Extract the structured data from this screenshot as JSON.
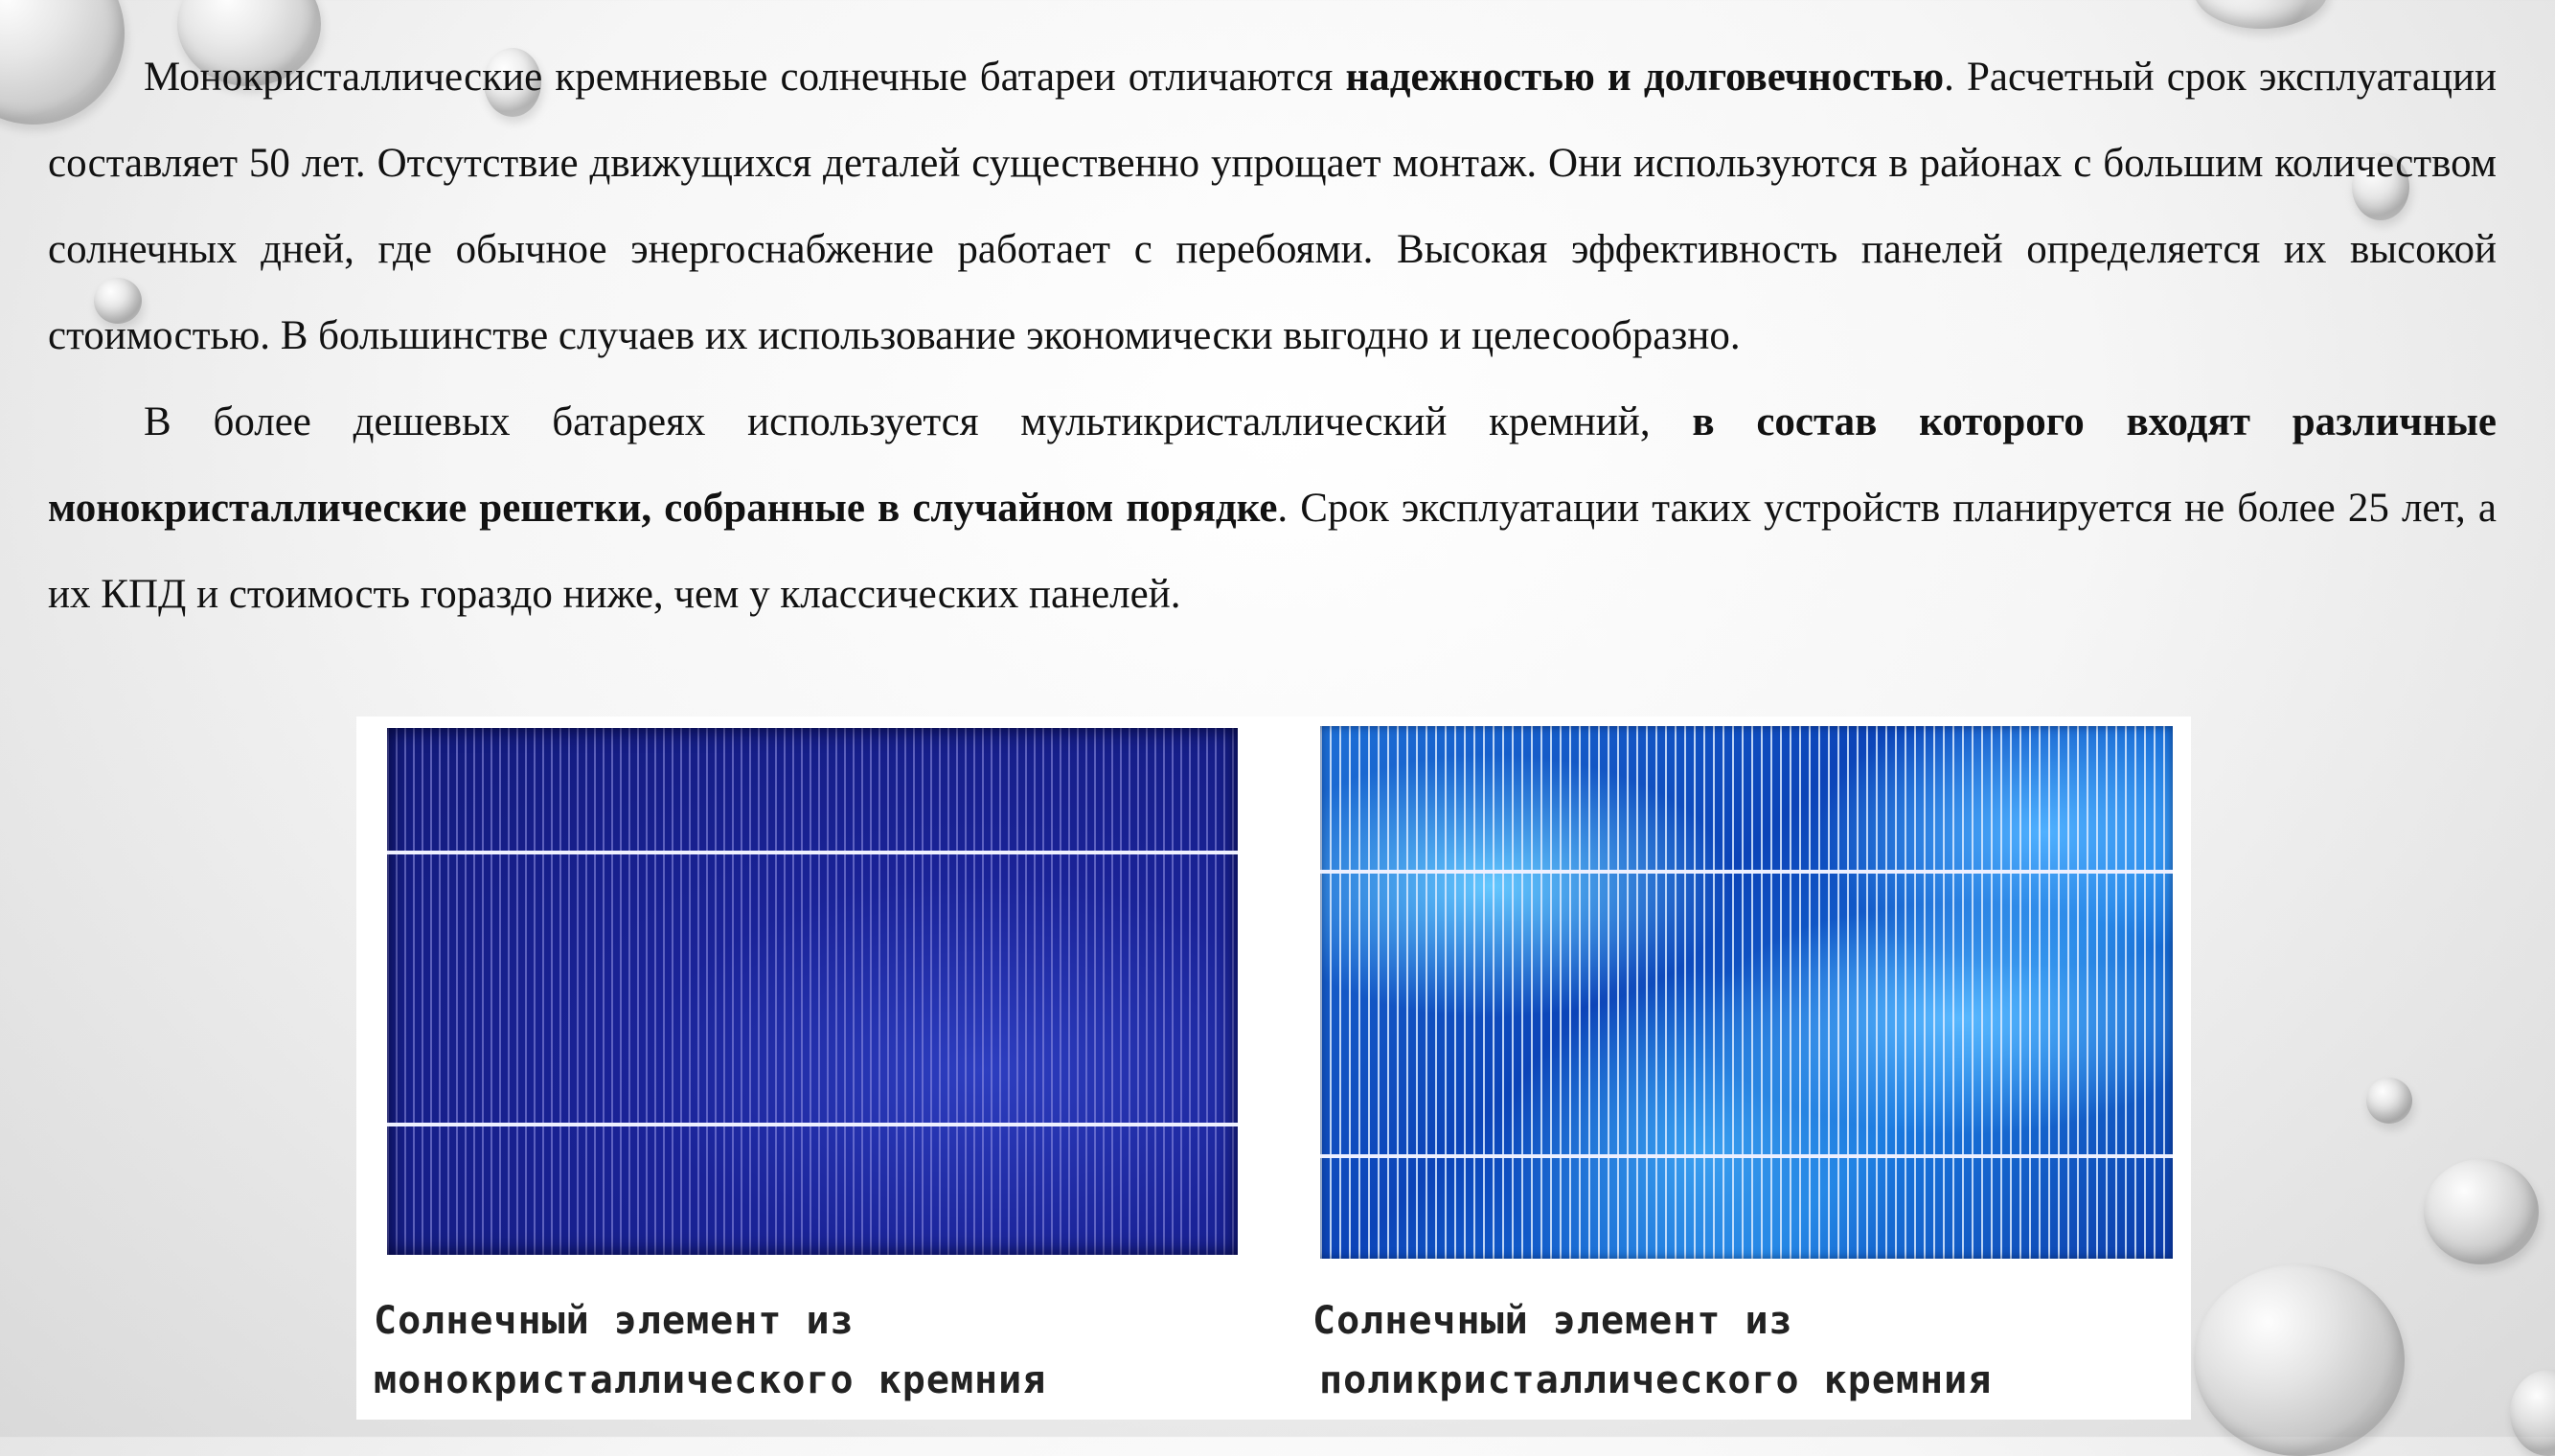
{
  "paragraph1": {
    "part1": "Монокристаллические кремниевые солнечные батареи отличаются ",
    "bold1": "надежностью и долговечностью",
    "part2": ". Расчетный срок эксплуатации составляет 50 лет. Отсутствие движущихся деталей существенно упрощает монтаж. Они используются в районах с большим количеством солнечных дней, где обычное энергоснабжение работает с перебоями. Высокая эффективность панелей определяется их высокой стоимостью. В большинстве случаев их использование экономически выгодно и целесообразно."
  },
  "paragraph2": {
    "part1": "В более дешевых батареях используется мультикристаллический кремний, ",
    "bold1": "в состав которого входят различные монокристаллические решетки, собранные в случайном порядке",
    "part2": ". Срок эксплуатации таких устройств планируется не более 25 лет, а их КПД и стоимость гораздо ниже, чем у классических панелей."
  },
  "figure": {
    "left_caption_line1": "Солнечный элемент из",
    "left_caption_line2": "монокристаллического кремния",
    "right_caption_line1": "Солнечный элемент из",
    "right_caption_line2": "поликристаллического кремния"
  },
  "colors": {
    "mono_cell": "#1a2398",
    "poly_cell": "#1d6fd6",
    "busbar": "#eef0ff"
  }
}
